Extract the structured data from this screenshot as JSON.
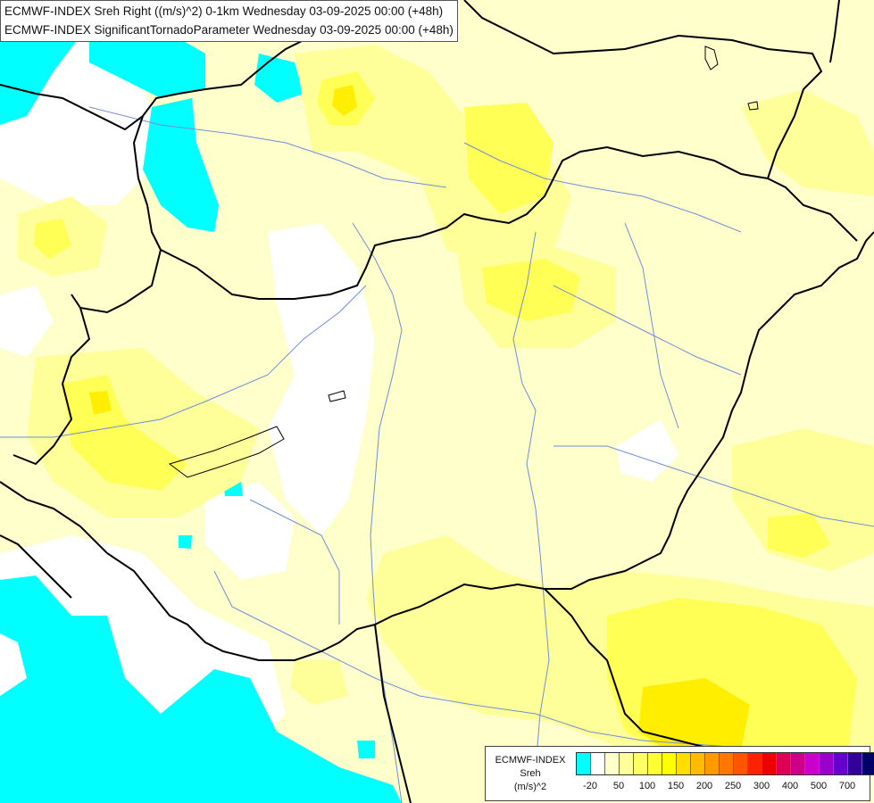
{
  "titles": {
    "line1": "ECMWF-INDEX Sreh Right ((m/s)^2) 0-1km Wednesday 03-09-2025 00:00 (+48h)",
    "line2": "ECMWF-INDEX SignificantTornadoParameter Wednesday 03-09-2025 00:00 (+48h)"
  },
  "legend": {
    "title_lines": [
      "ECMWF-INDEX",
      "Sreh",
      "(m/s)^2"
    ],
    "colors": [
      "#00ffff",
      "#ffffff",
      "#ffffcc",
      "#ffff99",
      "#ffff66",
      "#ffff33",
      "#ffff00",
      "#ffdd00",
      "#ffbb00",
      "#ff9900",
      "#ff7700",
      "#ff5500",
      "#ff2200",
      "#ee0000",
      "#dd0055",
      "#cc0088",
      "#cc00cc",
      "#9900cc",
      "#6600cc",
      "#330099",
      "#000066"
    ],
    "ticks": [
      "-20",
      "50",
      "100",
      "150",
      "200",
      "250",
      "300",
      "400",
      "500",
      "700"
    ]
  },
  "field_colors": {
    "cyan": "#00ffff",
    "white": "#ffffff",
    "pale_yellow": "#ffffcc",
    "light_yellow": "#ffff99",
    "yellow": "#ffff66",
    "strong_yellow": "#ffff33",
    "deep_yellow": "#ffee00",
    "river": "#6f8fd8",
    "border": "#000000"
  }
}
